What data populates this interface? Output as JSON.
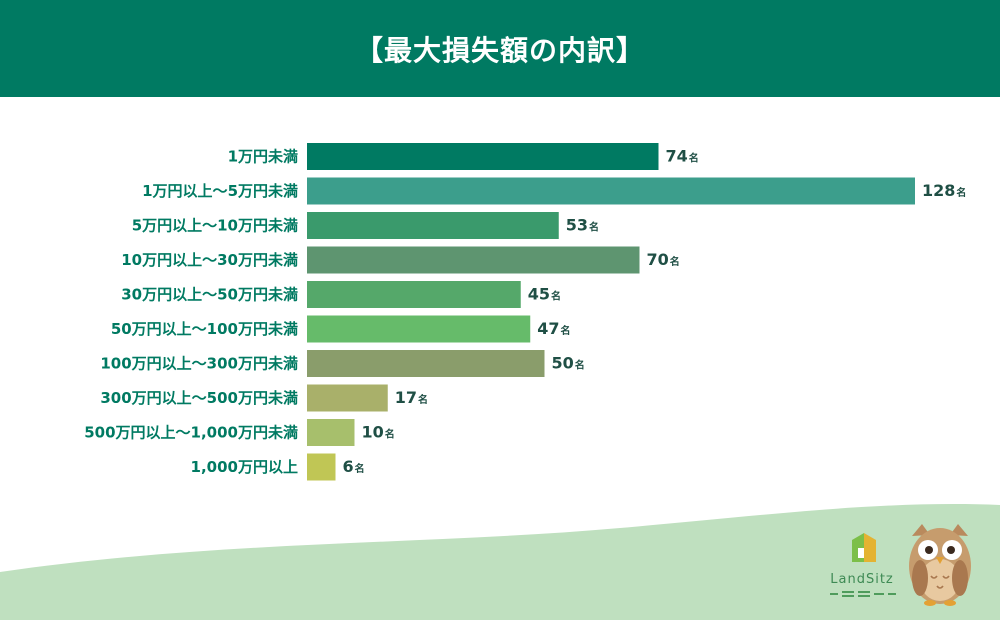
{
  "header": {
    "title": "【最大損失額の内訳】"
  },
  "chart_data": {
    "type": "bar",
    "orientation": "horizontal",
    "title": "【最大損失額の内訳】",
    "categories": [
      "1万円未満",
      "1万円以上～5万円未満",
      "5万円以上～10万円未満",
      "10万円以上～30万円未満",
      "30万円以上～50万円未満",
      "50万円以上～100万円未満",
      "100万円以上～300万円未満",
      "300万円以上～500万円未満",
      "500万円以上～1,000万円未満",
      "1,000万円以上"
    ],
    "values": [
      74,
      128,
      53,
      70,
      45,
      47,
      50,
      17,
      10,
      6
    ],
    "unit": "名",
    "colors": [
      "#007a62",
      "#3c9e8c",
      "#3a9a6c",
      "#5e9570",
      "#55a86a",
      "#66bb6a",
      "#8a9d6b",
      "#a9b06a",
      "#a7bf6c",
      "#c0c655"
    ],
    "xlim": [
      0,
      128
    ],
    "grid": false,
    "legend": "none"
  },
  "logo": {
    "text": "LandSitz"
  },
  "decor": {
    "wave_color": "#bfe0bf",
    "logo_color": "#4f9c5c"
  }
}
